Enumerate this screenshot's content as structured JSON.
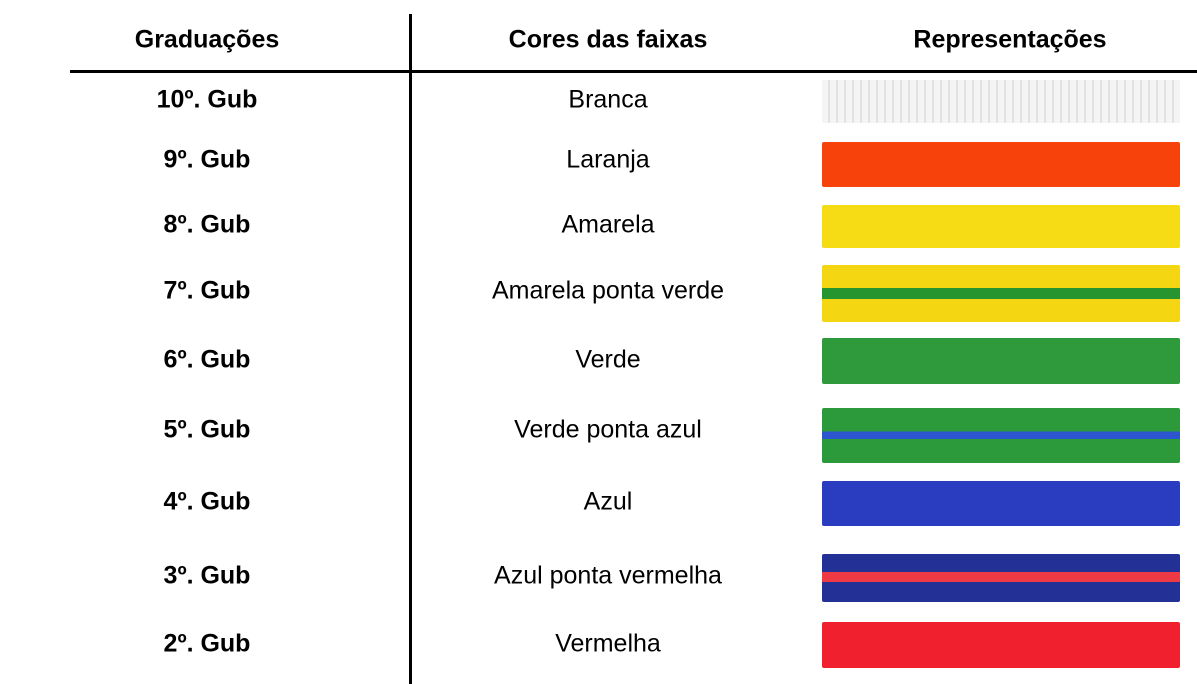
{
  "table": {
    "headers": [
      "Graduações",
      "Cores das faixas",
      "Representações"
    ],
    "rows": [
      [
        "10º. Gub",
        "Branca"
      ],
      [
        "9º. Gub",
        "Laranja"
      ],
      [
        "8º. Gub",
        "Amarela"
      ],
      [
        "7º. Gub",
        "Amarela ponta verde"
      ],
      [
        "6º. Gub",
        "Verde"
      ],
      [
        "5º. Gub",
        "Verde ponta azul"
      ],
      [
        "4º. Gub",
        "Azul"
      ],
      [
        "3º. Gub",
        "Azul ponta vermelha"
      ],
      [
        "2º. Gub",
        "Vermelha"
      ]
    ]
  }
}
